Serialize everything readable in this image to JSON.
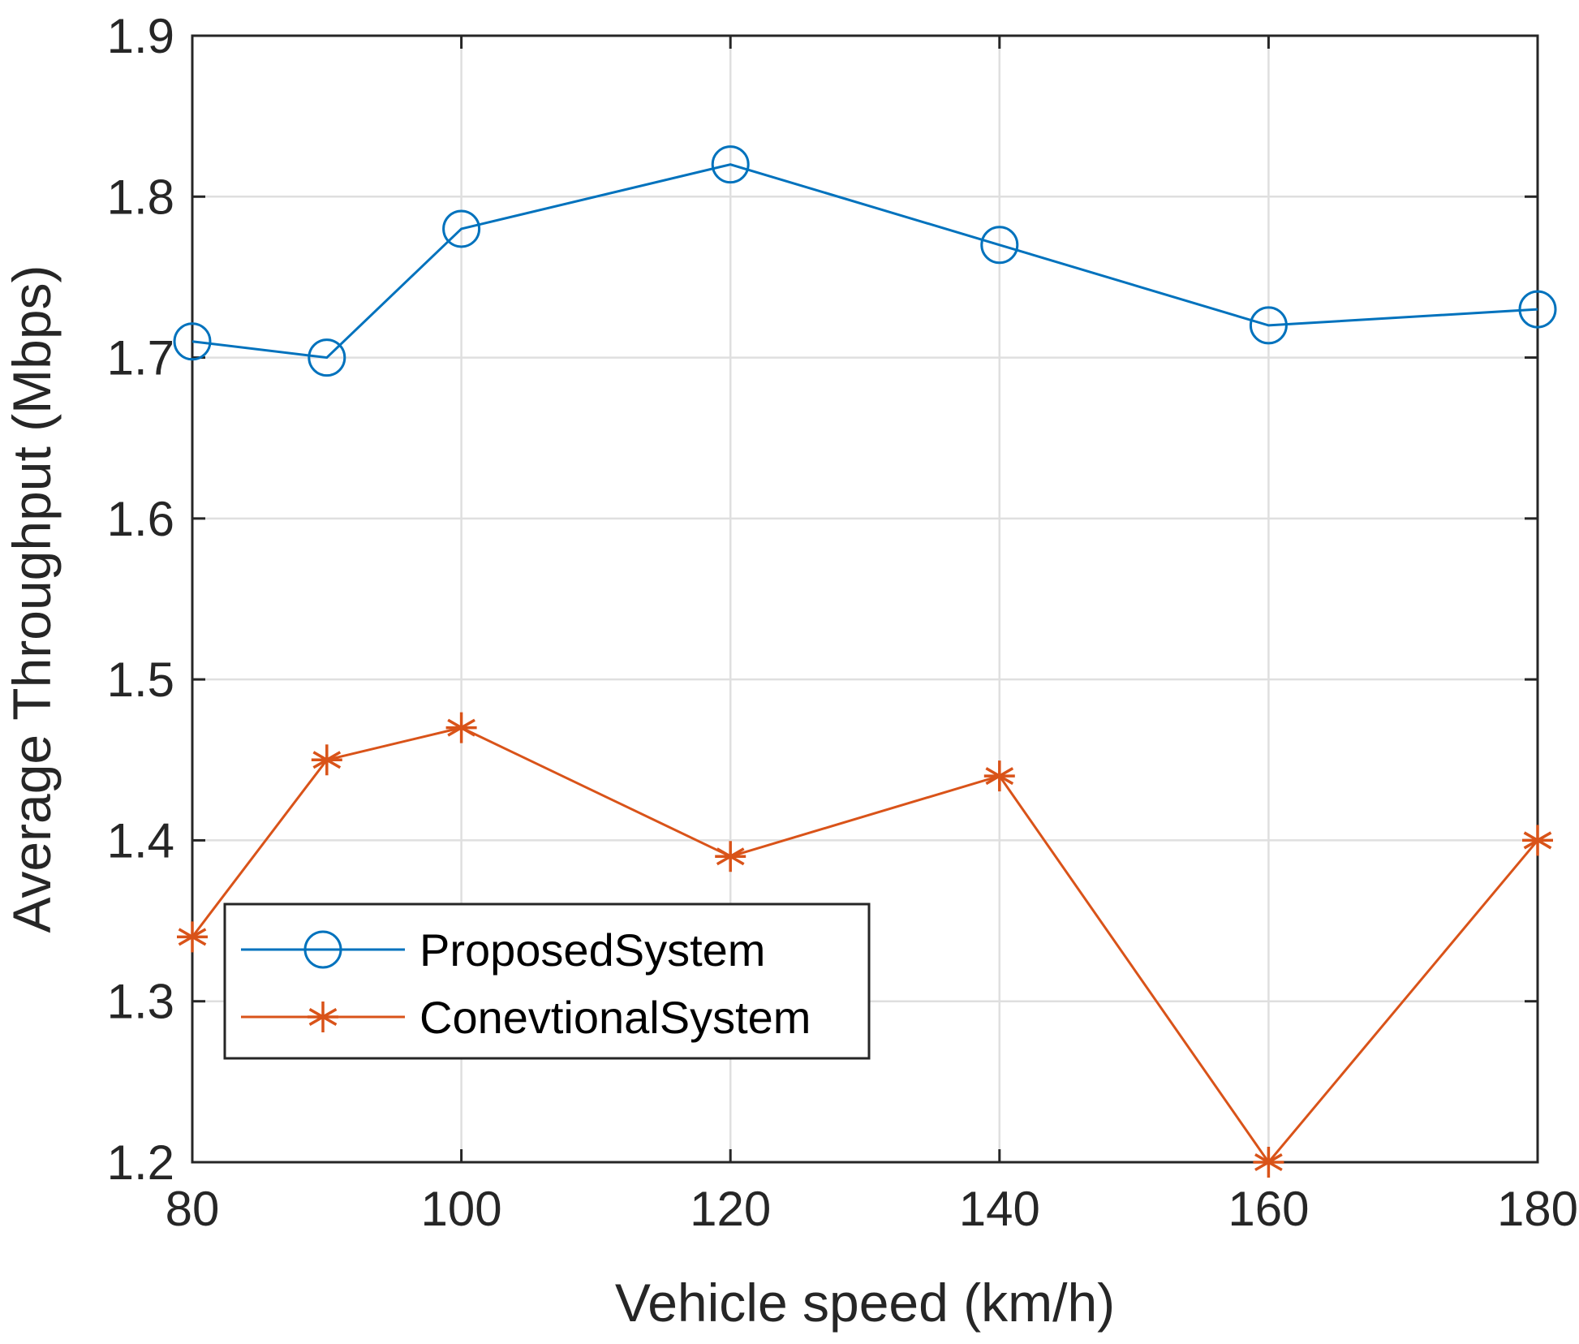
{
  "chart_data": {
    "type": "line",
    "title": "",
    "xlabel": "Vehicle speed (km/h)",
    "ylabel": "Average Throughput (Mbps)",
    "xlim": [
      80,
      180
    ],
    "ylim": [
      1.2,
      1.9
    ],
    "xticks": [
      "80",
      "100",
      "120",
      "140",
      "160",
      "180"
    ],
    "yticks": [
      "1.2",
      "1.3",
      "1.4",
      "1.5",
      "1.6",
      "1.7",
      "1.8",
      "1.9"
    ],
    "grid": true,
    "legend_position": "lower-left",
    "x": [
      80,
      90,
      100,
      120,
      140,
      160,
      180
    ],
    "series": [
      {
        "name": "ProposedSystem",
        "marker": "circle",
        "color": "#0072BD",
        "values": [
          1.71,
          1.7,
          1.78,
          1.82,
          1.77,
          1.72,
          1.73
        ]
      },
      {
        "name": "ConevtionalSystem",
        "marker": "asterisk",
        "color": "#D95319",
        "values": [
          1.34,
          1.45,
          1.47,
          1.39,
          1.44,
          1.2,
          1.4
        ]
      }
    ]
  }
}
